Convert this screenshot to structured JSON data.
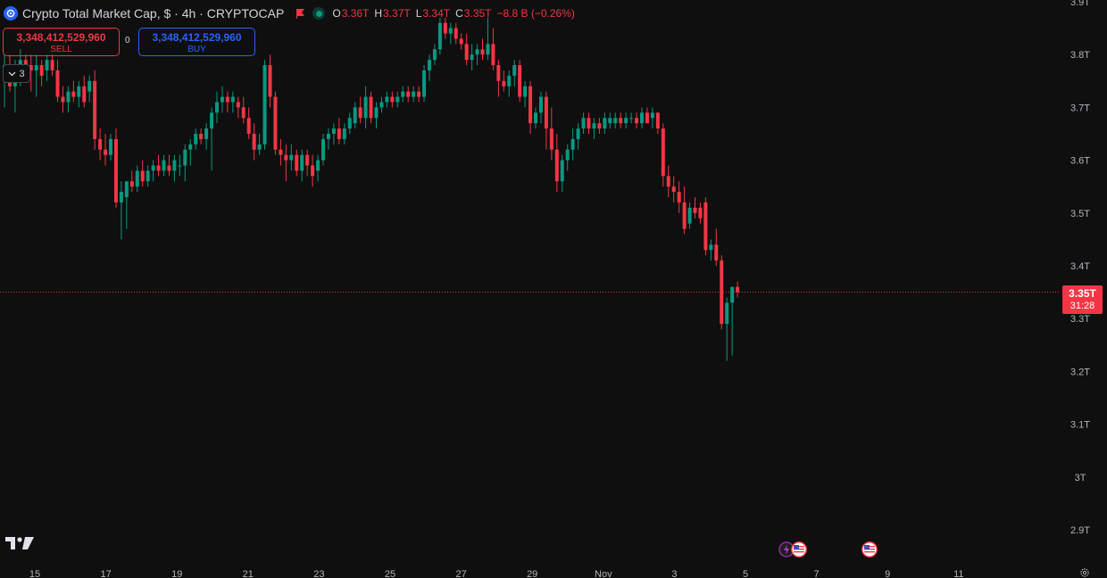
{
  "header": {
    "title": "Crypto Total Market Cap, $ · 4h · CRYPTOCAP",
    "ohlc": {
      "o_label": "O",
      "o": "3.36T",
      "h_label": "H",
      "h": "3.37T",
      "l_label": "L",
      "l": "3.34T",
      "c_label": "C",
      "c": "3.35T",
      "change": "−8.8 B (−0.26%)"
    }
  },
  "trade": {
    "sell_value": "3,348,412,529,960",
    "sell_label": "SELL",
    "buy_value": "3,348,412,529,960",
    "buy_label": "BUY",
    "spread": "0"
  },
  "indicators_toggle": {
    "count": "3"
  },
  "last_price": {
    "price": "3.35T",
    "countdown": "31:28"
  },
  "colors": {
    "up": "#089981",
    "down": "#f23645",
    "background": "#0f0f0f",
    "text": "#b2b5be",
    "price_line": "#f23645"
  },
  "icons": [
    "logo-icon",
    "flag-icon",
    "live-status-icon",
    "chevron-down-icon",
    "tradingview-logo-icon",
    "us-flag-event-icon",
    "lightning-event-icon",
    "settings-gear-icon"
  ],
  "chart_data": {
    "type": "candlestick",
    "timeframe": "4h",
    "y_axis": {
      "ticks": [
        "3.9T",
        "3.8T",
        "3.7T",
        "3.6T",
        "3.5T",
        "3.4T",
        "3.3T",
        "3.2T",
        "3.1T",
        "3T",
        "2.9T"
      ],
      "tick_values": [
        3.9,
        3.8,
        3.7,
        3.6,
        3.5,
        3.4,
        3.3,
        3.2,
        3.1,
        3.0,
        2.9
      ],
      "ylim": [
        2.87,
        3.91
      ],
      "unit": "T"
    },
    "x_axis": {
      "ticks": [
        "15",
        "17",
        "19",
        "21",
        "23",
        "25",
        "27",
        "29",
        "Nov",
        "3",
        "5",
        "7",
        "9",
        "11"
      ]
    },
    "last_close": 3.35,
    "candles": [
      [
        3.76,
        3.8,
        3.7,
        3.78
      ],
      [
        3.78,
        3.8,
        3.73,
        3.74
      ],
      [
        3.74,
        3.79,
        3.69,
        3.77
      ],
      [
        3.77,
        3.81,
        3.74,
        3.79
      ],
      [
        3.79,
        3.8,
        3.76,
        3.78
      ],
      [
        3.78,
        3.8,
        3.73,
        3.77
      ],
      [
        3.77,
        3.8,
        3.72,
        3.78
      ],
      [
        3.78,
        3.79,
        3.74,
        3.76
      ],
      [
        3.77,
        3.8,
        3.75,
        3.79
      ],
      [
        3.79,
        3.8,
        3.76,
        3.77
      ],
      [
        3.77,
        3.79,
        3.71,
        3.72
      ],
      [
        3.72,
        3.74,
        3.69,
        3.71
      ],
      [
        3.71,
        3.74,
        3.69,
        3.73
      ],
      [
        3.73,
        3.75,
        3.71,
        3.72
      ],
      [
        3.72,
        3.75,
        3.7,
        3.74
      ],
      [
        3.74,
        3.76,
        3.7,
        3.71
      ],
      [
        3.73,
        3.76,
        3.71,
        3.75
      ],
      [
        3.75,
        3.77,
        3.62,
        3.64
      ],
      [
        3.64,
        3.66,
        3.6,
        3.62
      ],
      [
        3.62,
        3.65,
        3.59,
        3.61
      ],
      [
        3.61,
        3.65,
        3.6,
        3.64
      ],
      [
        3.64,
        3.66,
        3.51,
        3.52
      ],
      [
        3.52,
        3.56,
        3.45,
        3.54
      ],
      [
        3.53,
        3.56,
        3.47,
        3.56
      ],
      [
        3.56,
        3.58,
        3.54,
        3.55
      ],
      [
        3.55,
        3.59,
        3.54,
        3.58
      ],
      [
        3.58,
        3.6,
        3.55,
        3.56
      ],
      [
        3.56,
        3.59,
        3.55,
        3.58
      ],
      [
        3.58,
        3.6,
        3.56,
        3.59
      ],
      [
        3.59,
        3.61,
        3.57,
        3.58
      ],
      [
        3.58,
        3.61,
        3.57,
        3.6
      ],
      [
        3.59,
        3.61,
        3.57,
        3.58
      ],
      [
        3.58,
        3.61,
        3.56,
        3.6
      ],
      [
        3.59,
        3.61,
        3.57,
        3.59
      ],
      [
        3.59,
        3.63,
        3.56,
        3.62
      ],
      [
        3.62,
        3.64,
        3.59,
        3.63
      ],
      [
        3.63,
        3.66,
        3.62,
        3.65
      ],
      [
        3.65,
        3.66,
        3.63,
        3.64
      ],
      [
        3.64,
        3.67,
        3.62,
        3.66
      ],
      [
        3.66,
        3.7,
        3.58,
        3.69
      ],
      [
        3.69,
        3.73,
        3.67,
        3.71
      ],
      [
        3.71,
        3.74,
        3.69,
        3.72
      ],
      [
        3.72,
        3.73,
        3.69,
        3.71
      ],
      [
        3.71,
        3.73,
        3.69,
        3.72
      ],
      [
        3.71,
        3.72,
        3.68,
        3.7
      ],
      [
        3.7,
        3.72,
        3.67,
        3.68
      ],
      [
        3.68,
        3.7,
        3.64,
        3.65
      ],
      [
        3.65,
        3.67,
        3.6,
        3.62
      ],
      [
        3.62,
        3.65,
        3.61,
        3.63
      ],
      [
        3.63,
        3.79,
        3.62,
        3.78
      ],
      [
        3.78,
        3.8,
        3.7,
        3.72
      ],
      [
        3.72,
        3.73,
        3.61,
        3.62
      ],
      [
        3.62,
        3.64,
        3.59,
        3.61
      ],
      [
        3.61,
        3.63,
        3.56,
        3.6
      ],
      [
        3.6,
        3.63,
        3.58,
        3.61
      ],
      [
        3.61,
        3.62,
        3.57,
        3.58
      ],
      [
        3.58,
        3.62,
        3.56,
        3.61
      ],
      [
        3.61,
        3.62,
        3.57,
        3.59
      ],
      [
        3.59,
        3.61,
        3.55,
        3.57
      ],
      [
        3.58,
        3.61,
        3.56,
        3.6
      ],
      [
        3.6,
        3.65,
        3.59,
        3.64
      ],
      [
        3.64,
        3.66,
        3.62,
        3.65
      ],
      [
        3.65,
        3.67,
        3.63,
        3.66
      ],
      [
        3.66,
        3.68,
        3.63,
        3.64
      ],
      [
        3.64,
        3.67,
        3.63,
        3.66
      ],
      [
        3.66,
        3.69,
        3.65,
        3.68
      ],
      [
        3.67,
        3.71,
        3.66,
        3.7
      ],
      [
        3.7,
        3.72,
        3.67,
        3.68
      ],
      [
        3.68,
        3.74,
        3.66,
        3.72
      ],
      [
        3.72,
        3.73,
        3.67,
        3.68
      ],
      [
        3.68,
        3.71,
        3.66,
        3.7
      ],
      [
        3.7,
        3.72,
        3.69,
        3.71
      ],
      [
        3.71,
        3.73,
        3.7,
        3.72
      ],
      [
        3.72,
        3.73,
        3.7,
        3.71
      ],
      [
        3.71,
        3.73,
        3.7,
        3.72
      ],
      [
        3.72,
        3.74,
        3.71,
        3.73
      ],
      [
        3.73,
        3.74,
        3.71,
        3.72
      ],
      [
        3.72,
        3.74,
        3.71,
        3.73
      ],
      [
        3.73,
        3.74,
        3.71,
        3.72
      ],
      [
        3.72,
        3.78,
        3.71,
        3.77
      ],
      [
        3.77,
        3.8,
        3.75,
        3.79
      ],
      [
        3.79,
        3.82,
        3.78,
        3.81
      ],
      [
        3.81,
        3.87,
        3.8,
        3.86
      ],
      [
        3.86,
        3.87,
        3.83,
        3.84
      ],
      [
        3.84,
        3.86,
        3.82,
        3.85
      ],
      [
        3.85,
        3.86,
        3.82,
        3.83
      ],
      [
        3.83,
        3.84,
        3.81,
        3.82
      ],
      [
        3.82,
        3.84,
        3.78,
        3.79
      ],
      [
        3.79,
        3.82,
        3.77,
        3.8
      ],
      [
        3.8,
        3.82,
        3.78,
        3.81
      ],
      [
        3.81,
        3.83,
        3.79,
        3.8
      ],
      [
        3.8,
        3.87,
        3.79,
        3.82
      ],
      [
        3.82,
        3.85,
        3.77,
        3.78
      ],
      [
        3.78,
        3.79,
        3.72,
        3.75
      ],
      [
        3.75,
        3.77,
        3.73,
        3.74
      ],
      [
        3.74,
        3.77,
        3.72,
        3.76
      ],
      [
        3.76,
        3.79,
        3.74,
        3.78
      ],
      [
        3.78,
        3.79,
        3.71,
        3.72
      ],
      [
        3.72,
        3.75,
        3.7,
        3.74
      ],
      [
        3.74,
        3.75,
        3.65,
        3.67
      ],
      [
        3.67,
        3.7,
        3.66,
        3.69
      ],
      [
        3.69,
        3.73,
        3.67,
        3.72
      ],
      [
        3.72,
        3.73,
        3.62,
        3.66
      ],
      [
        3.66,
        3.7,
        3.6,
        3.62
      ],
      [
        3.62,
        3.65,
        3.54,
        3.56
      ],
      [
        3.56,
        3.61,
        3.54,
        3.6
      ],
      [
        3.6,
        3.63,
        3.58,
        3.62
      ],
      [
        3.62,
        3.66,
        3.6,
        3.64
      ],
      [
        3.64,
        3.67,
        3.62,
        3.66
      ],
      [
        3.66,
        3.69,
        3.65,
        3.68
      ],
      [
        3.68,
        3.69,
        3.65,
        3.66
      ],
      [
        3.66,
        3.68,
        3.64,
        3.67
      ],
      [
        3.67,
        3.68,
        3.65,
        3.66
      ],
      [
        3.66,
        3.69,
        3.65,
        3.68
      ],
      [
        3.67,
        3.69,
        3.66,
        3.68
      ],
      [
        3.67,
        3.69,
        3.66,
        3.68
      ],
      [
        3.68,
        3.69,
        3.66,
        3.67
      ],
      [
        3.67,
        3.69,
        3.66,
        3.68
      ],
      [
        3.68,
        3.69,
        3.67,
        3.68
      ],
      [
        3.68,
        3.69,
        3.66,
        3.67
      ],
      [
        3.67,
        3.7,
        3.66,
        3.69
      ],
      [
        3.69,
        3.7,
        3.67,
        3.67
      ],
      [
        3.68,
        3.7,
        3.66,
        3.69
      ],
      [
        3.69,
        3.69,
        3.65,
        3.66
      ],
      [
        3.66,
        3.67,
        3.55,
        3.57
      ],
      [
        3.57,
        3.59,
        3.53,
        3.55
      ],
      [
        3.55,
        3.57,
        3.52,
        3.54
      ],
      [
        3.54,
        3.56,
        3.5,
        3.52
      ],
      [
        3.52,
        3.55,
        3.46,
        3.47
      ],
      [
        3.48,
        3.52,
        3.47,
        3.51
      ],
      [
        3.51,
        3.53,
        3.49,
        3.5
      ],
      [
        3.51,
        3.52,
        3.48,
        3.49
      ],
      [
        3.52,
        3.53,
        3.42,
        3.43
      ],
      [
        3.43,
        3.45,
        3.41,
        3.44
      ],
      [
        3.44,
        3.47,
        3.4,
        3.41
      ],
      [
        3.41,
        3.42,
        3.28,
        3.29
      ],
      [
        3.29,
        3.34,
        3.22,
        3.33
      ],
      [
        3.33,
        3.36,
        3.23,
        3.36
      ],
      [
        3.36,
        3.37,
        3.34,
        3.35
      ]
    ]
  }
}
